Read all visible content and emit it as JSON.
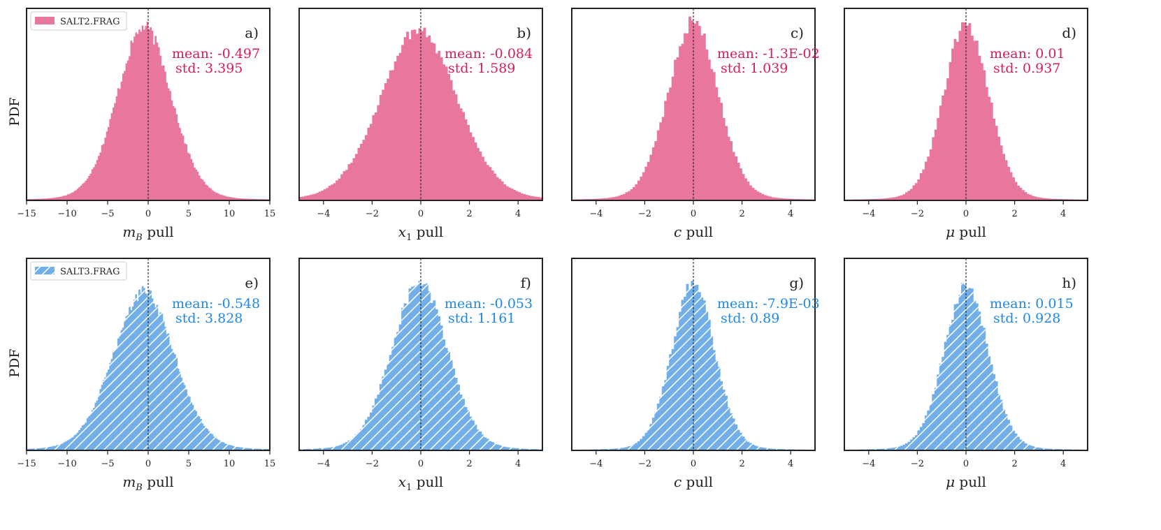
{
  "figure": {
    "ylabel": "PDF"
  },
  "colors": {
    "salt2": "#e8769e",
    "salt3": "#72aee8",
    "salt2_text": "#d81b60",
    "salt3_text": "#1e88e5"
  },
  "legends": [
    {
      "label": "SALT2.FRAG",
      "color": "#e8769e",
      "hatch": false
    },
    {
      "label": "SALT3.FRAG",
      "color": "#72aee8",
      "hatch": true
    }
  ],
  "chart_data": [
    {
      "type": "bar",
      "panel": "a)",
      "sample": "SALT2.FRAG",
      "xlabel_var": "m",
      "xlabel_sub": "B",
      "xlabel_rest": " pull",
      "xlim": [
        -15,
        15
      ],
      "xticks": [
        "−15",
        "−10",
        "−5",
        "0",
        "5",
        "10",
        "15"
      ],
      "xtick_values": [
        -15,
        -10,
        -5,
        0,
        5,
        10,
        15
      ],
      "mean_label": "mean: -0.497",
      "std_label": "std: 3.395",
      "mean": -0.497,
      "std": 3.395,
      "yscale_rel": 0.93,
      "bins": 150,
      "hatch": false,
      "color": "#e8769e",
      "text_color": "#d81b60"
    },
    {
      "type": "bar",
      "panel": "b)",
      "sample": "SALT2.FRAG",
      "xlabel_var": "x",
      "xlabel_sub": "1",
      "xlabel_rest": " pull",
      "xlim": [
        -5,
        5
      ],
      "xticks": [
        "−4",
        "−2",
        "0",
        "2",
        "4"
      ],
      "xtick_values": [
        -4,
        -2,
        0,
        2,
        4
      ],
      "mean_label": "mean: -0.084",
      "std_label": "std: 1.589",
      "mean": -0.084,
      "std": 1.589,
      "yscale_rel": 0.92,
      "bins": 100,
      "hatch": false,
      "color": "#e8769e",
      "text_color": "#d81b60"
    },
    {
      "type": "bar",
      "panel": "c)",
      "sample": "SALT2.FRAG",
      "xlabel_var": "c",
      "xlabel_sub": "",
      "xlabel_rest": " pull",
      "xlim": [
        -5,
        5
      ],
      "xticks": [
        "−4",
        "−2",
        "0",
        "2",
        "4"
      ],
      "xtick_values": [
        -4,
        -2,
        0,
        2,
        4
      ],
      "mean_label": "mean: -1.3E-02",
      "std_label": "std: 1.039",
      "mean": -0.013,
      "std": 1.039,
      "yscale_rel": 0.96,
      "bins": 100,
      "hatch": false,
      "color": "#e8769e",
      "text_color": "#d81b60"
    },
    {
      "type": "bar",
      "panel": "d)",
      "sample": "SALT2.FRAG",
      "xlabel_var": "μ",
      "xlabel_sub": "",
      "xlabel_rest": " pull",
      "xlim": [
        -5,
        5
      ],
      "xticks": [
        "−4",
        "−2",
        "0",
        "2",
        "4"
      ],
      "xtick_values": [
        -4,
        -2,
        0,
        2,
        4
      ],
      "mean_label": "mean: 0.01",
      "std_label": "std: 0.937",
      "mean": 0.01,
      "std": 0.937,
      "yscale_rel": 0.95,
      "bins": 100,
      "hatch": false,
      "color": "#e8769e",
      "text_color": "#d81b60"
    },
    {
      "type": "bar",
      "panel": "e)",
      "sample": "SALT3.FRAG",
      "xlabel_var": "m",
      "xlabel_sub": "B",
      "xlabel_rest": " pull",
      "xlim": [
        -15,
        15
      ],
      "xticks": [
        "−15",
        "−10",
        "−5",
        "0",
        "5",
        "10",
        "15"
      ],
      "xtick_values": [
        -15,
        -10,
        -5,
        0,
        5,
        10,
        15
      ],
      "mean_label": "mean: -0.548",
      "std_label": "std: 3.828",
      "mean": -0.548,
      "std": 3.828,
      "yscale_rel": 0.85,
      "bins": 150,
      "hatch": true,
      "color": "#72aee8",
      "text_color": "#1e88e5"
    },
    {
      "type": "bar",
      "panel": "f)",
      "sample": "SALT3.FRAG",
      "xlabel_var": "x",
      "xlabel_sub": "1",
      "xlabel_rest": " pull",
      "xlim": [
        -5,
        5
      ],
      "xticks": [
        "−4",
        "−2",
        "0",
        "2",
        "4"
      ],
      "xtick_values": [
        -4,
        -2,
        0,
        2,
        4
      ],
      "mean_label": "mean: -0.053",
      "std_label": "std: 1.161",
      "mean": -0.053,
      "std": 1.161,
      "yscale_rel": 0.9,
      "bins": 100,
      "hatch": true,
      "color": "#72aee8",
      "text_color": "#1e88e5"
    },
    {
      "type": "bar",
      "panel": "g)",
      "sample": "SALT3.FRAG",
      "xlabel_var": "c",
      "xlabel_sub": "",
      "xlabel_rest": " pull",
      "xlim": [
        -5,
        5
      ],
      "xticks": [
        "−4",
        "−2",
        "0",
        "2",
        "4"
      ],
      "xtick_values": [
        -4,
        -2,
        0,
        2,
        4
      ],
      "mean_label": "mean: -7.9E-03",
      "std_label": "std: 0.89",
      "mean": -0.0079,
      "std": 0.89,
      "yscale_rel": 0.9,
      "bins": 100,
      "hatch": true,
      "color": "#72aee8",
      "text_color": "#1e88e5"
    },
    {
      "type": "bar",
      "panel": "h)",
      "sample": "SALT3.FRAG",
      "xlabel_var": "μ",
      "xlabel_sub": "",
      "xlabel_rest": " pull",
      "xlim": [
        -5,
        5
      ],
      "xticks": [
        "−4",
        "−2",
        "0",
        "2",
        "4"
      ],
      "xtick_values": [
        -4,
        -2,
        0,
        2,
        4
      ],
      "mean_label": "mean: 0.015",
      "std_label": "std: 0.928",
      "mean": 0.015,
      "std": 0.928,
      "yscale_rel": 0.88,
      "bins": 100,
      "hatch": true,
      "color": "#72aee8",
      "text_color": "#1e88e5"
    }
  ]
}
